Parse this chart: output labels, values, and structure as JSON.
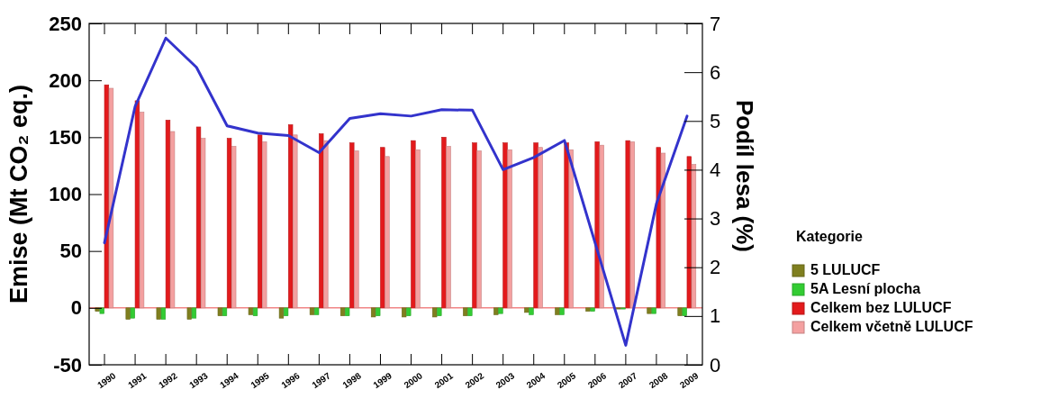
{
  "chart_data": {
    "type": "bar",
    "categories": [
      "1990",
      "1991",
      "1992",
      "1993",
      "1994",
      "1995",
      "1996",
      "1997",
      "1998",
      "1999",
      "2000",
      "2001",
      "2002",
      "2003",
      "2004",
      "2005",
      "2006",
      "2007",
      "2008",
      "2009"
    ],
    "series": [
      {
        "name": "5 LULUCF",
        "color": "#7f7f1f",
        "values": [
          -3,
          -10,
          -10,
          -10,
          -7,
          -6,
          -9,
          -6,
          -7,
          -8,
          -8,
          -8,
          -7,
          -6,
          -4,
          -6,
          -3,
          -1,
          -5,
          -7
        ]
      },
      {
        "name": "5A Lesní plocha",
        "color": "#33cc33",
        "values": [
          -5,
          -9,
          -10,
          -9,
          -7,
          -7,
          -7,
          -6,
          -7,
          -7,
          -7,
          -7,
          -7,
          -5,
          -6,
          -6,
          -3,
          -1,
          -5,
          -7
        ]
      },
      {
        "name": "Celkem bez LULUCF",
        "color": "#e31a1c",
        "values": [
          196,
          182,
          165,
          159,
          149,
          152,
          161,
          153,
          145,
          141,
          147,
          150,
          145,
          145,
          145,
          145,
          146,
          147,
          141,
          133
        ]
      },
      {
        "name": "Celkem včetně LULUCF",
        "color": "#f4a0a0",
        "values": [
          193,
          172,
          155,
          149,
          142,
          146,
          152,
          147,
          138,
          133,
          139,
          142,
          138,
          139,
          141,
          139,
          143,
          146,
          136,
          126
        ]
      },
      {
        "type": "line",
        "axis": "y2",
        "color": "#3333cc",
        "values": [
          2.5,
          5.3,
          6.7,
          6.1,
          4.9,
          4.75,
          4.7,
          4.35,
          5.05,
          5.15,
          5.1,
          5.23,
          5.22,
          4.0,
          4.25,
          4.6,
          2.5,
          0.4,
          3.3,
          5.1
        ]
      }
    ],
    "ylabel": "Emise (Mt CO₂ eq.)",
    "y2label": "Podíl lesa (%)",
    "legend_title": "Kategorie",
    "ylim": [
      -50,
      250
    ],
    "yticks": [
      -50,
      0,
      50,
      100,
      150,
      200,
      250
    ],
    "y2lim": [
      0,
      7
    ],
    "y2ticks": [
      0,
      1,
      2,
      3,
      4,
      5,
      6,
      7
    ],
    "ref_lines": [
      {
        "axis": "y",
        "value": 0,
        "color": "#e31a1c"
      }
    ],
    "legend": "right",
    "grid": false
  }
}
